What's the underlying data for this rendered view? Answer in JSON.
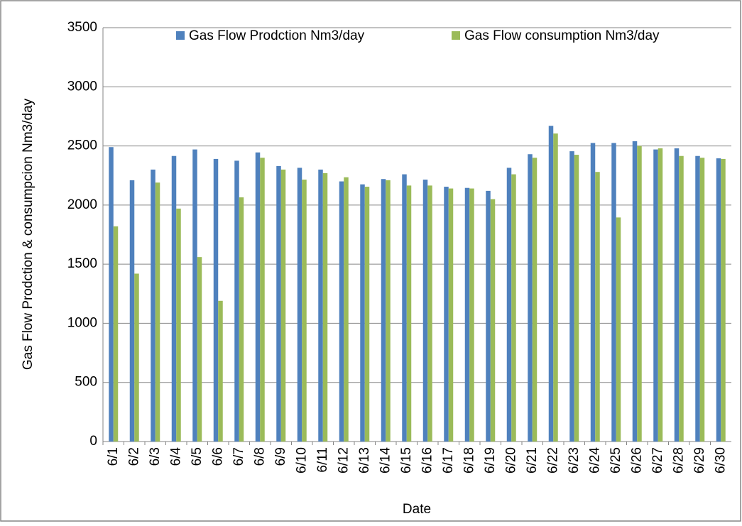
{
  "chart_data": {
    "type": "bar",
    "x_label": "Date",
    "y_label": "Gas Flow Prodction & consumpcion Nm3/day",
    "categories": [
      "6/1",
      "6/2",
      "6/3",
      "6/4",
      "6/5",
      "6/6",
      "6/7",
      "6/8",
      "6/9",
      "6/10",
      "6/11",
      "6/12",
      "6/13",
      "6/14",
      "6/15",
      "6/16",
      "6/17",
      "6/18",
      "6/19",
      "6/20",
      "6/21",
      "6/22",
      "6/23",
      "6/24",
      "6/25",
      "6/26",
      "6/27",
      "6/28",
      "6/29",
      "6/30"
    ],
    "series": [
      {
        "name": "Gas Flow Prodction Nm3/day",
        "color": "#4f81bd",
        "values": [
          2490,
          2210,
          2300,
          2415,
          2470,
          2390,
          2375,
          2445,
          2330,
          2315,
          2300,
          2200,
          2175,
          2220,
          2260,
          2215,
          2155,
          2145,
          2120,
          2315,
          2430,
          2670,
          2455,
          2525,
          2525,
          2540,
          2470,
          2480,
          2415,
          2395
        ]
      },
      {
        "name": "Gas Flow consumption Nm3/day",
        "color": "#9bbb59",
        "values": [
          1820,
          1420,
          2190,
          1970,
          1560,
          1190,
          2065,
          2400,
          2300,
          2215,
          2270,
          2235,
          2155,
          2210,
          2165,
          2165,
          2140,
          2140,
          2050,
          2260,
          2400,
          2605,
          2425,
          2280,
          1895,
          2500,
          2480,
          2415,
          2400,
          2390
        ]
      }
    ],
    "ylim": [
      0,
      3500
    ],
    "yticks": [
      0,
      500,
      1000,
      1500,
      2000,
      2500,
      3000,
      3500
    ],
    "grid": true,
    "legend": "top"
  }
}
